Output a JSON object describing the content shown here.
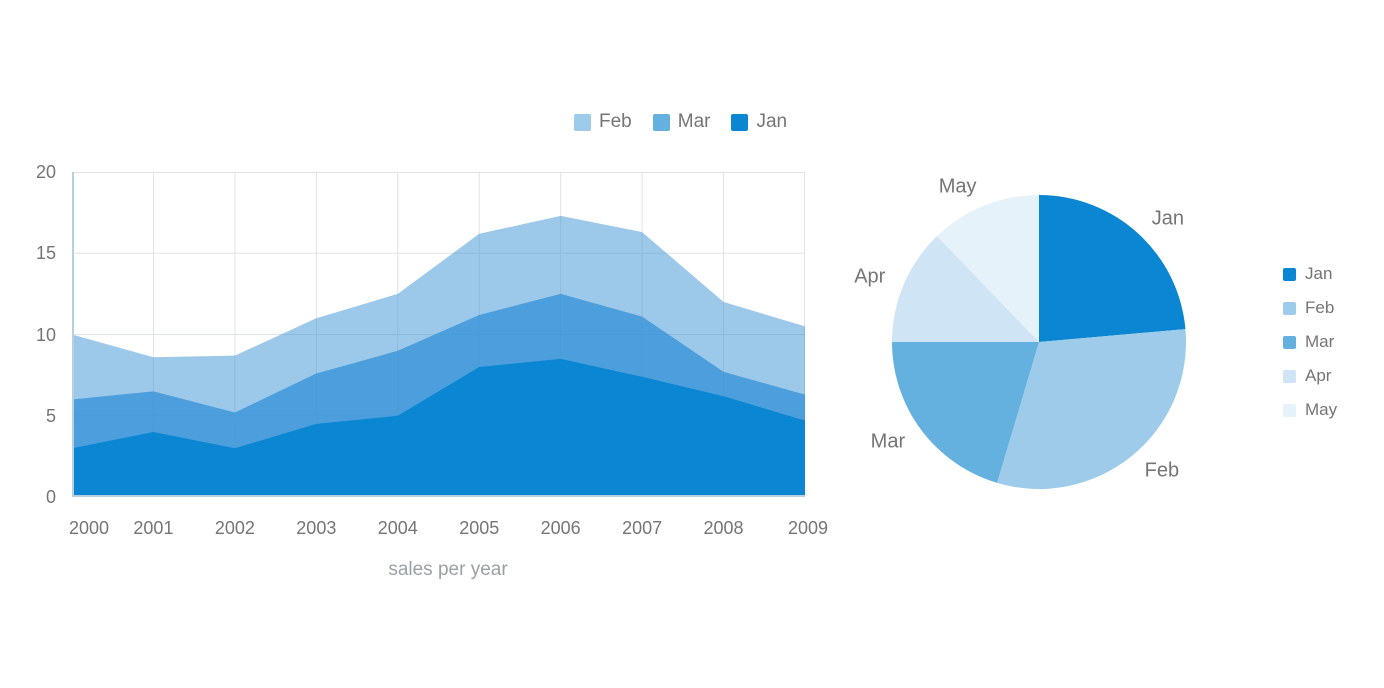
{
  "colors": {
    "background": "#ffffff",
    "jan": "#0b86d3",
    "feb": "#9ecbea",
    "mar": "#64b0df",
    "apr": "#cfe5f5",
    "may": "#e6f2fa",
    "grid_line": "#dfe3e8",
    "axis_line": "#b9cfdf",
    "tick_label": "#757575",
    "axis_title": "#9aa0a6",
    "legend_label": "#757575",
    "pie_label": "#757575"
  },
  "chart_data": [
    {
      "type": "area",
      "stacked": true,
      "title": "sales per year",
      "categories": [
        "2000",
        "2001",
        "2002",
        "2003",
        "2004",
        "2005",
        "2006",
        "2007",
        "2008",
        "2009"
      ],
      "yticks": [
        0,
        5,
        10,
        15,
        20
      ],
      "ylim": [
        0,
        20
      ],
      "grid": true,
      "legend_position": "top",
      "legend_order": [
        "Feb",
        "Mar",
        "Jan"
      ],
      "series": [
        {
          "name": "Jan",
          "color": "#0b86d3",
          "fill": "rgba(11,134,211,1)",
          "values": [
            3,
            4,
            3,
            4.5,
            5,
            8,
            8.5,
            7.4,
            6.2,
            4.7
          ]
        },
        {
          "name": "Mar",
          "color": "#64b0df",
          "fill": "rgba(50,145,215,0.75)",
          "values": [
            3,
            2.5,
            2.2,
            3.1,
            4,
            3.2,
            4,
            3.7,
            1.5,
            1.6
          ]
        },
        {
          "name": "Feb",
          "color": "#9ecbea",
          "fill": "rgba(66,150,212,0.52)",
          "values": [
            4,
            2.1,
            3.5,
            3.4,
            3.5,
            5,
            4.8,
            5.2,
            4.3,
            4.2
          ]
        }
      ],
      "stacked_totals": [
        10,
        8.6,
        8.7,
        11,
        12.5,
        16.2,
        17.3,
        16.3,
        12,
        10.5
      ]
    },
    {
      "type": "pie",
      "labels": [
        "Jan",
        "Feb",
        "Mar",
        "Apr",
        "May"
      ],
      "values_percent": [
        23.6,
        31.0,
        20.4,
        12.8,
        12.2
      ],
      "colors": [
        "#0b86d3",
        "#9ecbea",
        "#64b0df",
        "#cfe5f5",
        "#e6f2fa"
      ],
      "start_angle_deg": 0,
      "clockwise": true,
      "legend_position": "right"
    }
  ]
}
